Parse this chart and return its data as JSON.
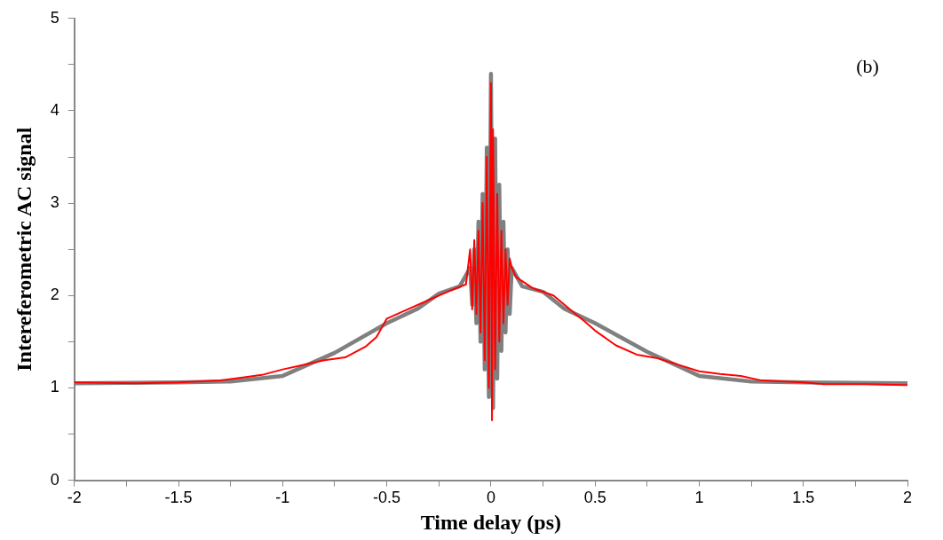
{
  "chart_data": {
    "type": "line",
    "xlabel": "Time delay (ps)",
    "ylabel": "Intereferometric AC signal",
    "annotations": [
      "(b)"
    ],
    "xlim": [
      -2,
      2
    ],
    "ylim": [
      0,
      5
    ],
    "xticks": [
      -2,
      {
        "value": -1.75,
        "label": null
      },
      -1.5,
      {
        "value": -1.25,
        "label": null
      },
      -1,
      {
        "value": -0.75,
        "label": null
      },
      -0.5,
      {
        "value": -0.25,
        "label": null
      },
      0,
      {
        "value": 0.25,
        "label": null
      },
      0.5,
      {
        "value": 0.75,
        "label": null
      },
      1,
      {
        "value": 1.25,
        "label": null
      },
      1.5,
      {
        "value": 1.75,
        "label": null
      },
      2
    ],
    "yticks": [
      0,
      {
        "value": 0.5,
        "label": null
      },
      1,
      {
        "value": 1.5,
        "label": null
      },
      2,
      {
        "value": 2.5,
        "label": null
      },
      3,
      {
        "value": 3.5,
        "label": null
      },
      4,
      {
        "value": 4.5,
        "label": null
      },
      5
    ],
    "grid": false,
    "legend": false,
    "marker": "none",
    "line_style": "solid",
    "series": [
      {
        "color": "#808080",
        "x": [
          -2,
          -1.5,
          -1.25,
          -1,
          -0.75,
          -0.5,
          -0.35,
          -0.25,
          -0.15,
          -0.1,
          -0.09,
          -0.08,
          -0.07,
          -0.06,
          -0.05,
          -0.04,
          -0.03,
          -0.02,
          -0.01,
          0,
          0.01,
          0.02,
          0.03,
          0.04,
          0.05,
          0.06,
          0.07,
          0.08,
          0.09,
          0.1,
          0.15,
          0.25,
          0.35,
          0.5,
          0.75,
          1,
          1.25,
          1.5,
          2
        ],
        "values": [
          1.05,
          1.06,
          1.07,
          1.13,
          1.38,
          1.7,
          1.86,
          2.02,
          2.1,
          2.3,
          1.9,
          2.5,
          1.7,
          2.8,
          1.5,
          3.1,
          1.2,
          3.6,
          0.9,
          4.4,
          0.78,
          3.7,
          1.1,
          3.2,
          1.4,
          2.8,
          1.6,
          2.5,
          1.8,
          2.3,
          2.1,
          2.04,
          1.86,
          1.7,
          1.39,
          1.13,
          1.07,
          1.06,
          1.05
        ]
      },
      {
        "color": "#ff0000",
        "x": [
          -2,
          -1.7,
          -1.5,
          -1.3,
          -1.2,
          -1.1,
          -1,
          -0.9,
          -0.8,
          -0.7,
          -0.6,
          -0.55,
          -0.5,
          -0.4,
          -0.3,
          -0.2,
          -0.12,
          -0.1,
          -0.09,
          -0.08,
          -0.07,
          -0.06,
          -0.05,
          -0.04,
          -0.03,
          -0.02,
          -0.01,
          0,
          0.005,
          0.01,
          0.02,
          0.03,
          0.04,
          0.05,
          0.06,
          0.07,
          0.08,
          0.09,
          0.1,
          0.12,
          0.2,
          0.3,
          0.4,
          0.45,
          0.5,
          0.6,
          0.7,
          0.8,
          0.9,
          1,
          1.1,
          1.2,
          1.3,
          1.5,
          1.6,
          1.8,
          2
        ],
        "values": [
          1.06,
          1.05,
          1.06,
          1.08,
          1.11,
          1.14,
          1.2,
          1.25,
          1.3,
          1.33,
          1.45,
          1.55,
          1.75,
          1.85,
          1.95,
          2.05,
          2.12,
          2.5,
          1.85,
          2.6,
          1.8,
          2.7,
          1.6,
          3,
          1.3,
          3.5,
          1,
          4.3,
          0.65,
          3.8,
          1.2,
          3.1,
          1.5,
          2.7,
          1.7,
          2.5,
          1.9,
          2.4,
          2.3,
          2.2,
          2.08,
          2,
          1.81,
          1.72,
          1.62,
          1.46,
          1.36,
          1.32,
          1.25,
          1.18,
          1.15,
          1.13,
          1.08,
          1.06,
          1.04,
          1.04,
          1.03
        ]
      }
    ]
  }
}
